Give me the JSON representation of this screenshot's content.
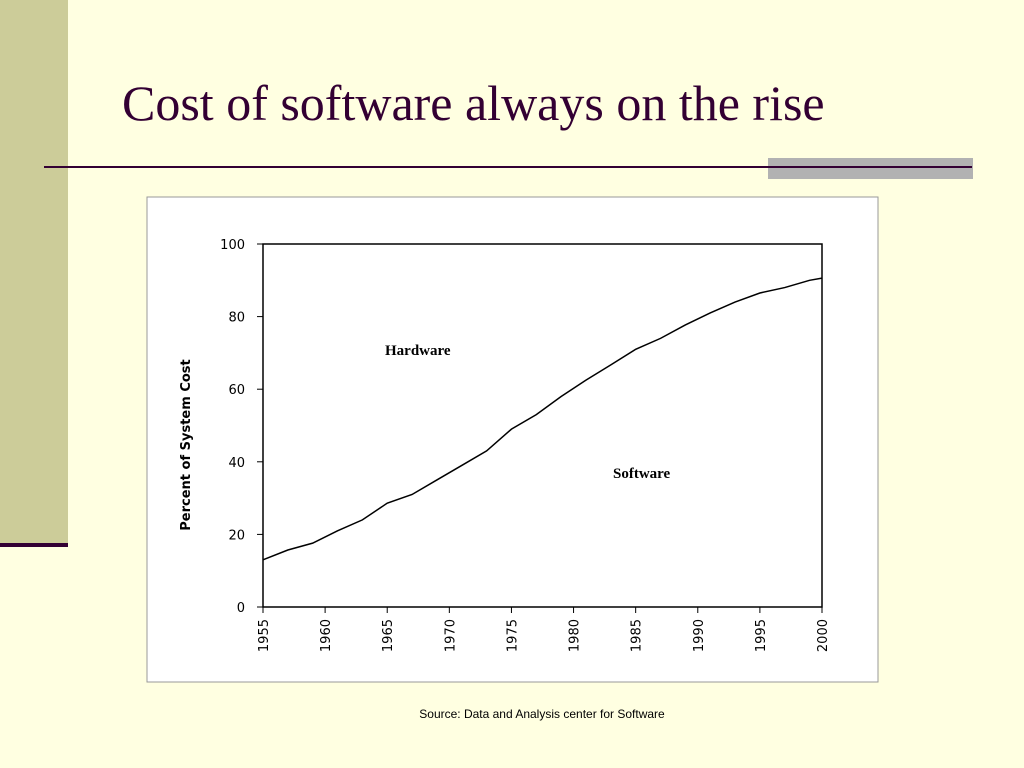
{
  "slide": {
    "title": "Cost of software always on the rise",
    "source": "Source: Data and Analysis center for Software"
  },
  "chart_data": {
    "type": "line",
    "y_label": "Percent of System Cost",
    "annotations": [
      "Hardware",
      "Software"
    ],
    "x": [
      1955,
      1957,
      1959,
      1961,
      1963,
      1965,
      1967,
      1969,
      1971,
      1973,
      1975,
      1977,
      1979,
      1981,
      1983,
      1985,
      1987,
      1989,
      1991,
      1993,
      1995,
      1997,
      1999,
      2000
    ],
    "series": [
      {
        "color": "#000000",
        "values": [
          13,
          15.7,
          17.6,
          21,
          24,
          28.6,
          31,
          35,
          39,
          43,
          49,
          53,
          58,
          62.5,
          66.7,
          71,
          74,
          77.7,
          81,
          84,
          86.5,
          88,
          90,
          90.6
        ]
      }
    ],
    "xlim": [
      1955,
      2000
    ],
    "xticks": [
      1955,
      1960,
      1965,
      1970,
      1975,
      1980,
      1985,
      1990,
      1995,
      2000
    ],
    "ylim": [
      0,
      100
    ],
    "yticks": [
      0,
      20,
      40,
      60,
      80,
      100
    ],
    "grid": false
  }
}
